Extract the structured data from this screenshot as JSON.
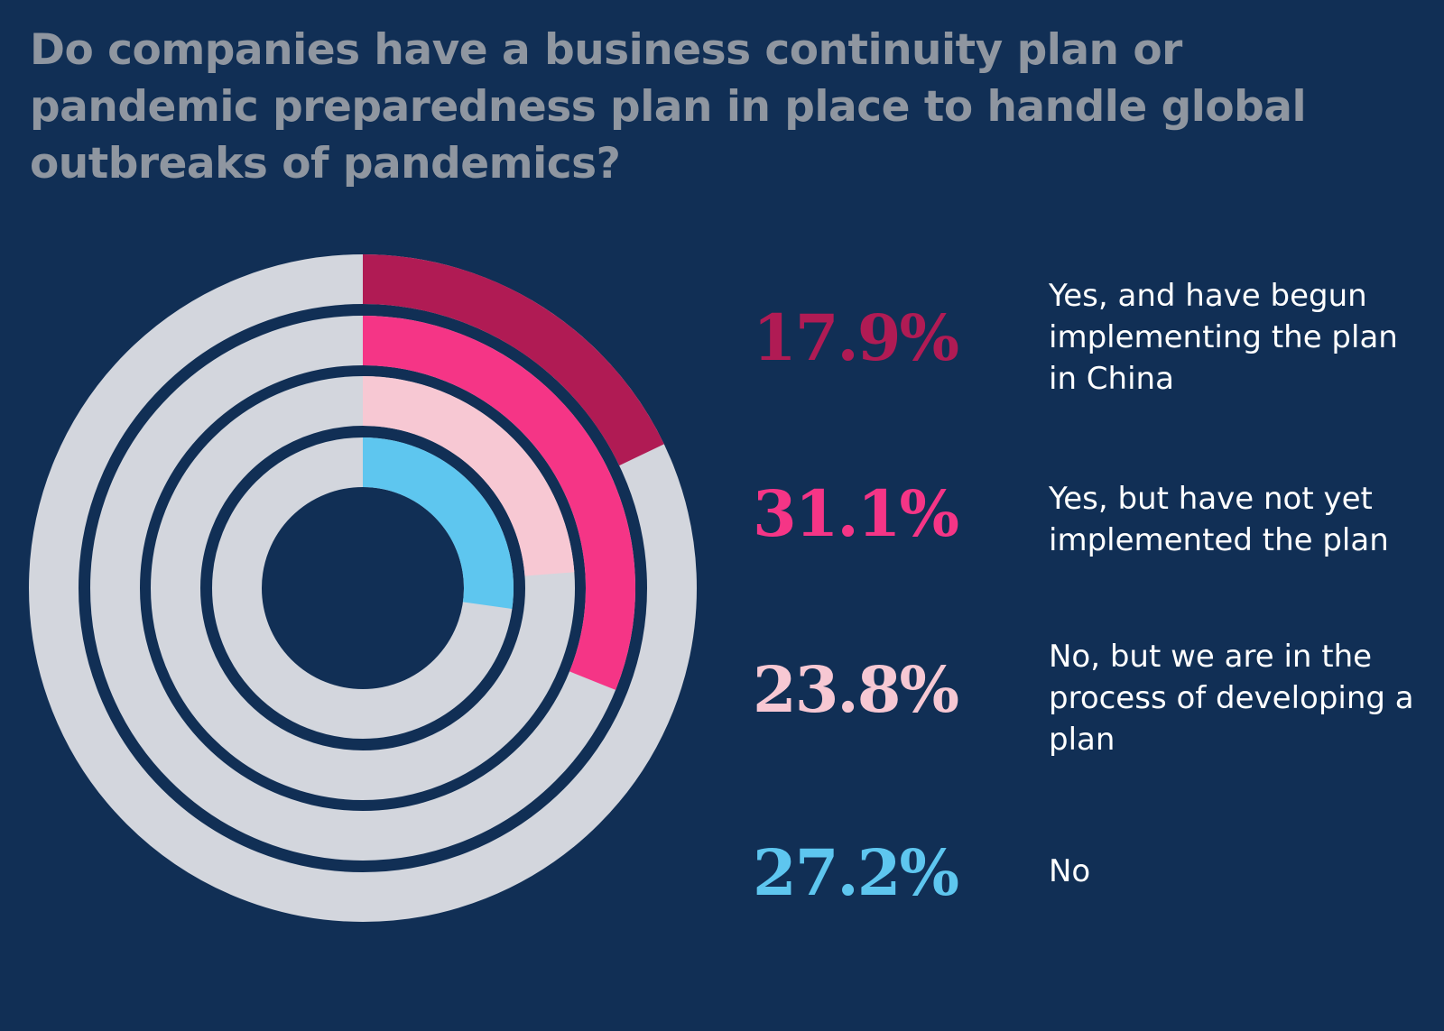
{
  "chart_data": {
    "type": "radial-bar",
    "title": "Do companies have a business continuity plan or pandemic preparedness plan in place to handle global outbreaks of pandemics?",
    "max": 100,
    "track_color": "#d3d6dd",
    "background_color": "#112f55",
    "series": [
      {
        "label": "Yes, and have begun implementing the plan in China",
        "value": 17.9,
        "display": "17.9%",
        "color": "#b01b54"
      },
      {
        "label": "Yes, but have not yet implemented the plan",
        "value": 31.1,
        "display": "31.1%",
        "color": "#f53586"
      },
      {
        "label": "No, but we are in the process of developing a plan",
        "value": 23.8,
        "display": "23.8%",
        "color": "#f7c8d3"
      },
      {
        "label": "No",
        "value": 27.2,
        "display": "27.2%",
        "color": "#5ec6ef"
      }
    ]
  }
}
